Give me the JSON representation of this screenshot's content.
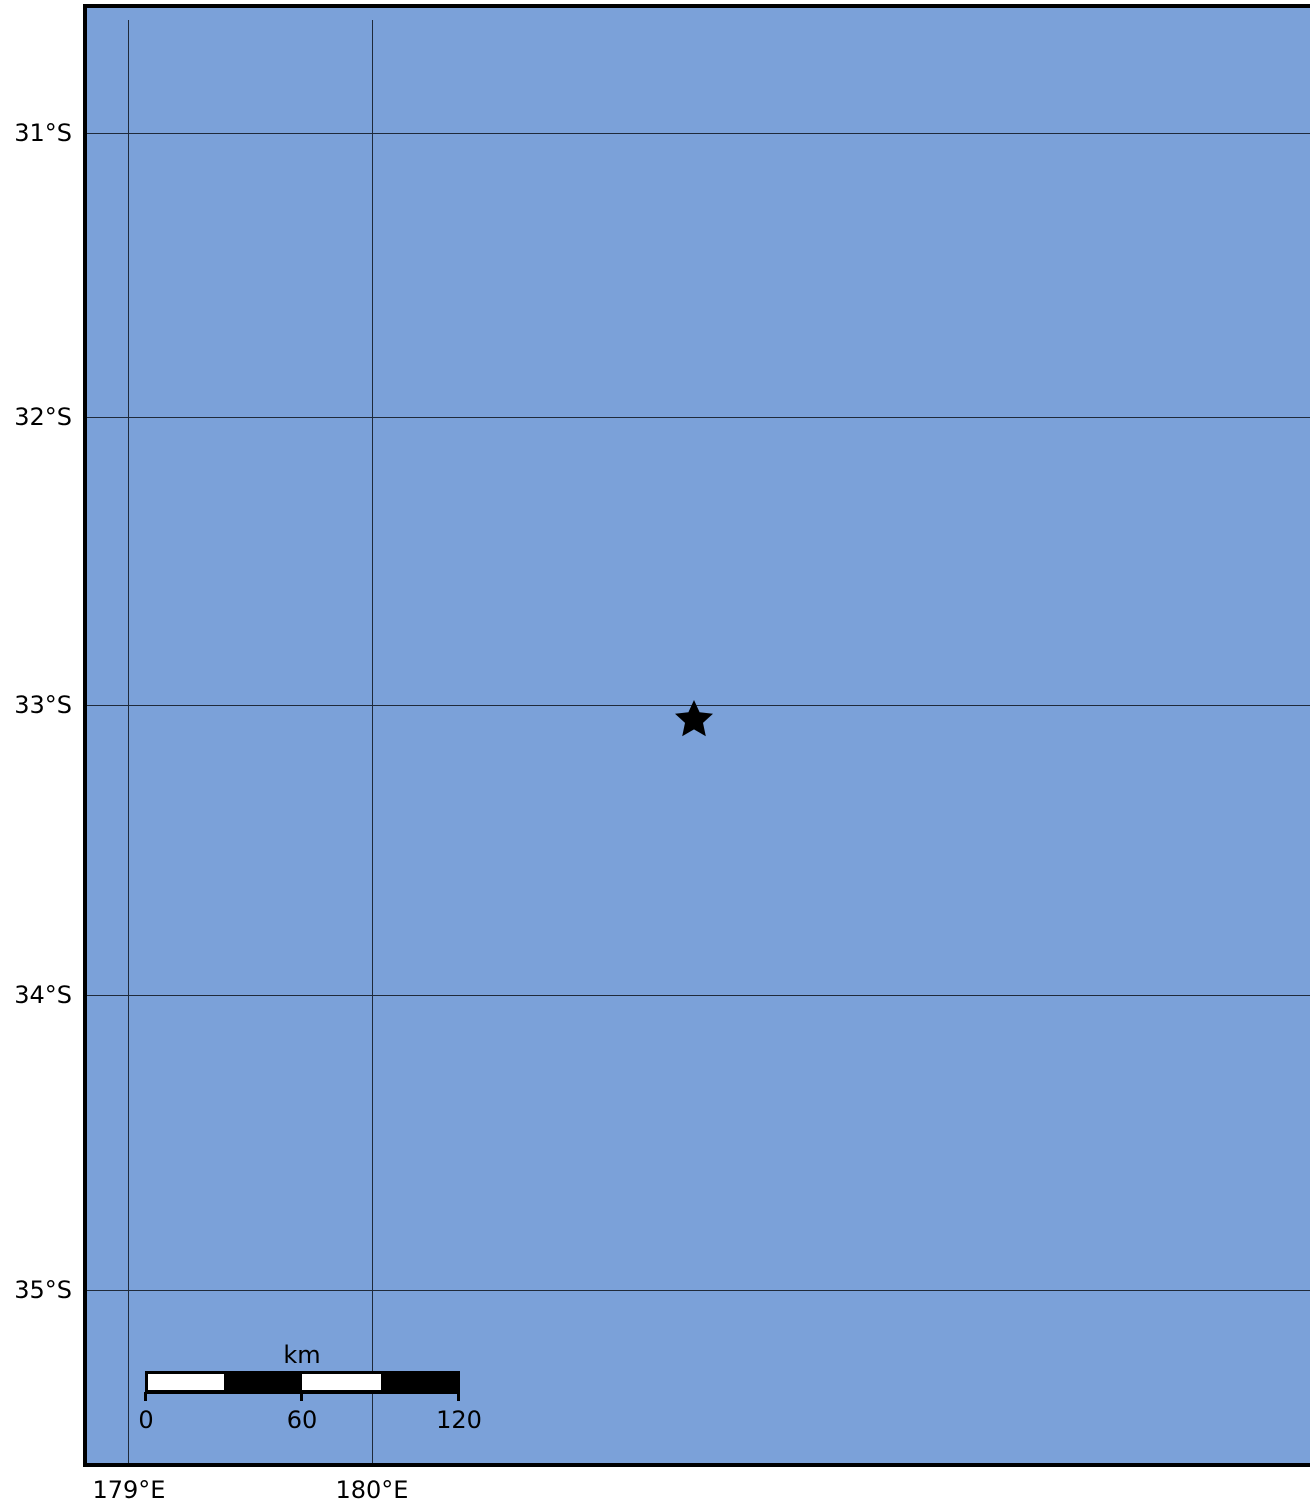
{
  "map": {
    "ocean_color": "#7ba1d9",
    "frame_color": "#000000",
    "grid_color": "#1f2a3a",
    "latitude_labels": [
      "31°S",
      "32°S",
      "33°S",
      "34°S",
      "35°S"
    ],
    "longitude_labels": [
      "179°E",
      "180°E"
    ],
    "marker": {
      "icon": "star-icon",
      "color": "#000000",
      "lat": -33.05,
      "lon": 181.33
    }
  },
  "scale_bar": {
    "unit": "km",
    "ticks": [
      "0",
      "60",
      "120"
    ]
  }
}
